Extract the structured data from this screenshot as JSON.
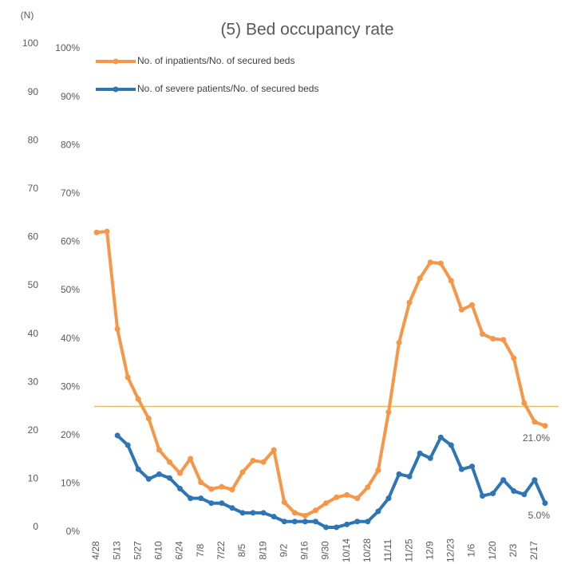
{
  "chart_data": {
    "type": "line",
    "title": "(5) Bed occupancy rate",
    "categories": [
      "4/28",
      null,
      "5/13",
      null,
      "5/27",
      null,
      "6/10",
      null,
      "6/24",
      null,
      "7/8",
      null,
      "7/22",
      null,
      "8/5",
      null,
      "8/19",
      null,
      "9/2",
      null,
      "9/16",
      null,
      "9/30",
      null,
      "10/14",
      null,
      "10/28",
      null,
      "11/11",
      null,
      "11/25",
      null,
      "12/9",
      null,
      "12/23",
      null,
      "1/6",
      null,
      "1/20",
      null,
      "2/3",
      null,
      "2/17",
      null
    ],
    "series": [
      {
        "name": "No. of inpatients/No. of secured beds",
        "color": "#f79646",
        "values": [
          61,
          61.2,
          41,
          31,
          26.5,
          22.5,
          16,
          13.5,
          11.2,
          14.2,
          9.3,
          7.9,
          8.4,
          7.8,
          11.4,
          13.8,
          13.5,
          16,
          5.2,
          3,
          2.4,
          3.5,
          5,
          6.2,
          6.7,
          6,
          8.3,
          11.8,
          23.8,
          38.2,
          46.5,
          51.5,
          54.8,
          54.6,
          51,
          45,
          46,
          40,
          39,
          38.8,
          35,
          25.7,
          21.8,
          21
        ],
        "value_labels": [
          null,
          null,
          null,
          null,
          null,
          null,
          null,
          null,
          null,
          null,
          null,
          null,
          null,
          null,
          null,
          null,
          null,
          null,
          null,
          null,
          null,
          null,
          null,
          null,
          null,
          null,
          null,
          null,
          null,
          null,
          null,
          null,
          null,
          null,
          null,
          null,
          null,
          null,
          null,
          null,
          null,
          null,
          null,
          "21.0%"
        ]
      },
      {
        "name": "No. of severe patients/No. of secured beds",
        "color": "#2e75b6",
        "values": [
          null,
          null,
          19,
          17,
          12,
          10,
          11,
          10.2,
          8,
          6,
          6,
          5,
          5,
          4,
          3,
          3,
          3,
          2.2,
          1.2,
          1.2,
          1.2,
          1.2,
          0,
          0,
          0.6,
          1.2,
          1.2,
          3.3,
          6,
          11,
          10.5,
          15.3,
          14.3,
          18.6,
          17,
          12,
          12.6,
          6.5,
          7,
          9.8,
          7.5,
          6.8,
          9.8,
          5
        ],
        "value_labels": [
          null,
          null,
          null,
          null,
          null,
          null,
          null,
          null,
          null,
          null,
          null,
          null,
          null,
          null,
          null,
          null,
          null,
          null,
          null,
          null,
          null,
          null,
          null,
          null,
          null,
          null,
          null,
          null,
          null,
          null,
          null,
          null,
          null,
          null,
          null,
          null,
          null,
          null,
          null,
          null,
          null,
          null,
          null,
          "5.0%"
        ]
      }
    ],
    "ylim": [
      0,
      100
    ],
    "yticks": [
      {
        "value": 0,
        "label": "0%"
      },
      {
        "value": 10,
        "label": "10%"
      },
      {
        "value": 20,
        "label": "20%"
      },
      {
        "value": 30,
        "label": "30%"
      },
      {
        "value": 40,
        "label": "40%"
      },
      {
        "value": 50,
        "label": "50%"
      },
      {
        "value": 60,
        "label": "60%"
      },
      {
        "value": 70,
        "label": "70%"
      },
      {
        "value": 80,
        "label": "80%"
      },
      {
        "value": 90,
        "label": "90%"
      },
      {
        "value": 100,
        "label": "100%"
      }
    ],
    "reference_line": {
      "value": 25,
      "color": "#ffc000"
    },
    "left_axis": {
      "label": "(N)",
      "ticks": [
        0,
        10,
        20,
        30,
        40,
        50,
        60,
        70,
        80,
        90,
        100
      ]
    }
  }
}
